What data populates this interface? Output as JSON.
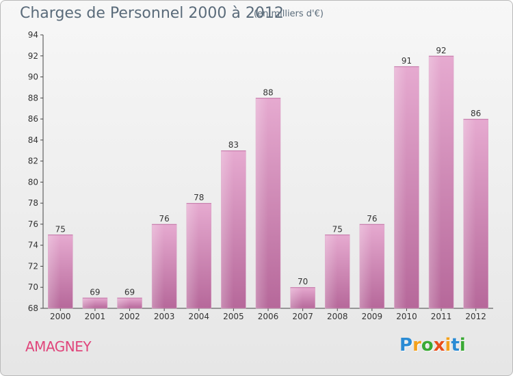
{
  "chart_data": {
    "type": "bar",
    "title": "Charges de Personnel 2000 à 2012",
    "subtitle": "(en milliers d'€)",
    "categories": [
      "2000",
      "2001",
      "2002",
      "2003",
      "2004",
      "2005",
      "2006",
      "2007",
      "2008",
      "2009",
      "2010",
      "2011",
      "2012"
    ],
    "values": [
      75,
      69,
      69,
      76,
      78,
      83,
      88,
      70,
      75,
      76,
      91,
      92,
      86
    ],
    "ylim": [
      68,
      94
    ],
    "yticks": [
      68,
      70,
      72,
      74,
      76,
      78,
      80,
      82,
      84,
      86,
      88,
      90,
      92,
      94
    ],
    "xlabel": "",
    "ylabel": "",
    "grid": false,
    "legend": "none",
    "colors": {
      "bar_light": "#e3a6cc",
      "bar_dark": "#b6689a",
      "bar_mid": "#cf86b6"
    }
  },
  "commune": "AMAGNEY",
  "logo": {
    "letters": [
      "P",
      "r",
      "o",
      "x",
      "i",
      "t",
      "i"
    ],
    "colors": [
      "#2a8bd4",
      "#f4a11c",
      "#3aa935",
      "#e84e1b",
      "#f4a11c",
      "#2a8bd4",
      "#3aa935"
    ]
  }
}
